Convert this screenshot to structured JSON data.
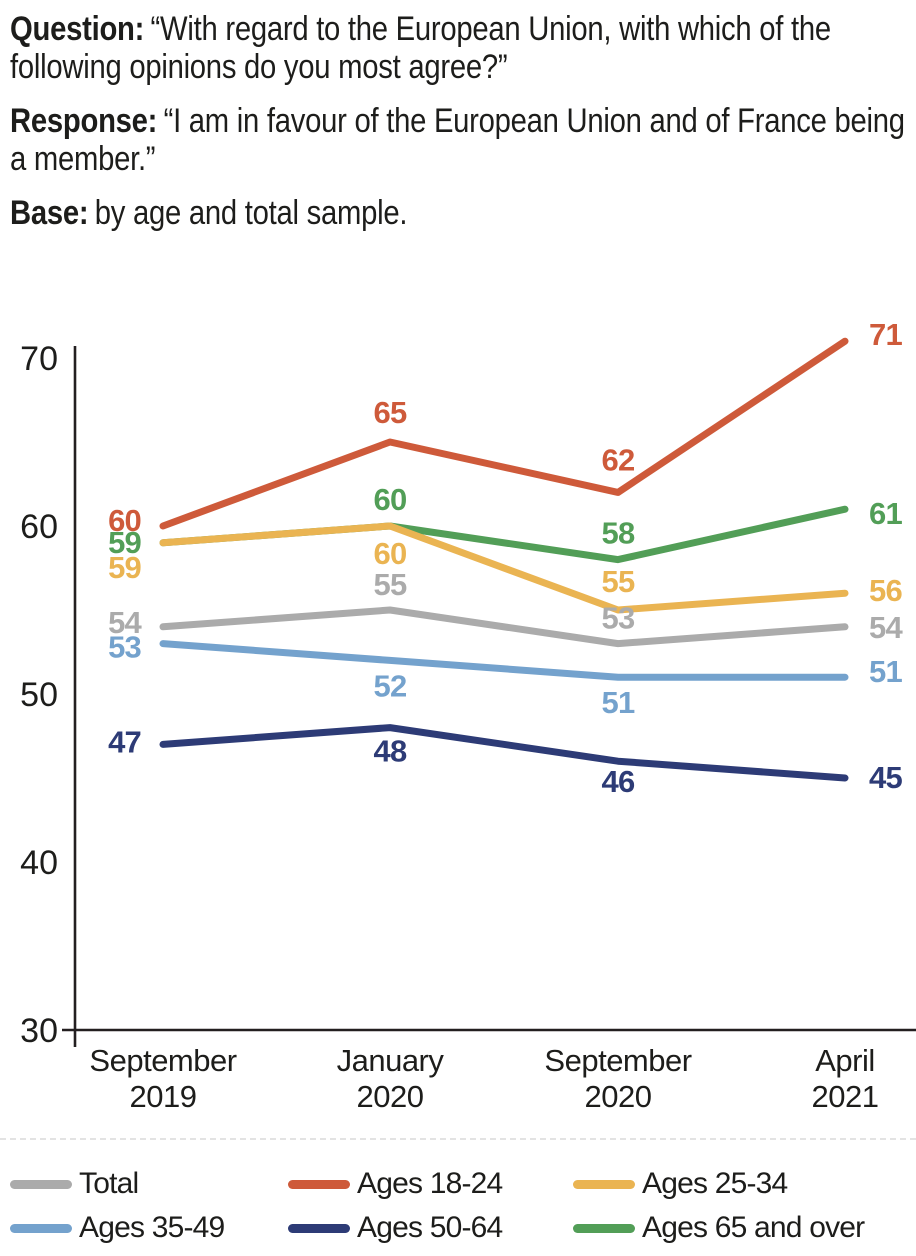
{
  "header": {
    "question_label": "Question:",
    "question_text": "“With regard to the European Union, with which of the following opinions do you most agree?”",
    "response_label": "Response:",
    "response_text": "“I am in favour of the European Union and of France being a member.”",
    "base_label": "Base:",
    "base_text": "by age and total sample."
  },
  "chart_data": {
    "type": "line",
    "title": "",
    "xlabel": "",
    "ylabel": "",
    "x": [
      "September 2019",
      "January 2020",
      "September 2020",
      "April 2021"
    ],
    "x_labels_two_line": [
      [
        "September",
        "2019"
      ],
      [
        "January",
        "2020"
      ],
      [
        "September",
        "2020"
      ],
      [
        "April",
        "2021"
      ]
    ],
    "ylim": [
      30,
      72
    ],
    "yticks": [
      30,
      40,
      50,
      60,
      70
    ],
    "grid": false,
    "legend_position": "bottom",
    "series": [
      {
        "name": "Total",
        "color": "#ABABAB",
        "values": [
          54,
          55,
          53,
          54
        ]
      },
      {
        "name": "Ages 18-24",
        "color": "#CE5A3A",
        "values": [
          60,
          65,
          62,
          71
        ]
      },
      {
        "name": "Ages 25-34",
        "color": "#EAB452",
        "values": [
          59,
          60,
          55,
          56
        ]
      },
      {
        "name": "Ages 35-49",
        "color": "#74A2CD",
        "values": [
          53,
          52,
          51,
          51
        ]
      },
      {
        "name": "Ages 50-64",
        "color": "#2D3B76",
        "values": [
          47,
          48,
          46,
          45
        ]
      },
      {
        "name": "Ages 65 and over",
        "color": "#529E57",
        "values": [
          59,
          60,
          58,
          61
        ]
      }
    ],
    "axis_color": "#231F20"
  }
}
